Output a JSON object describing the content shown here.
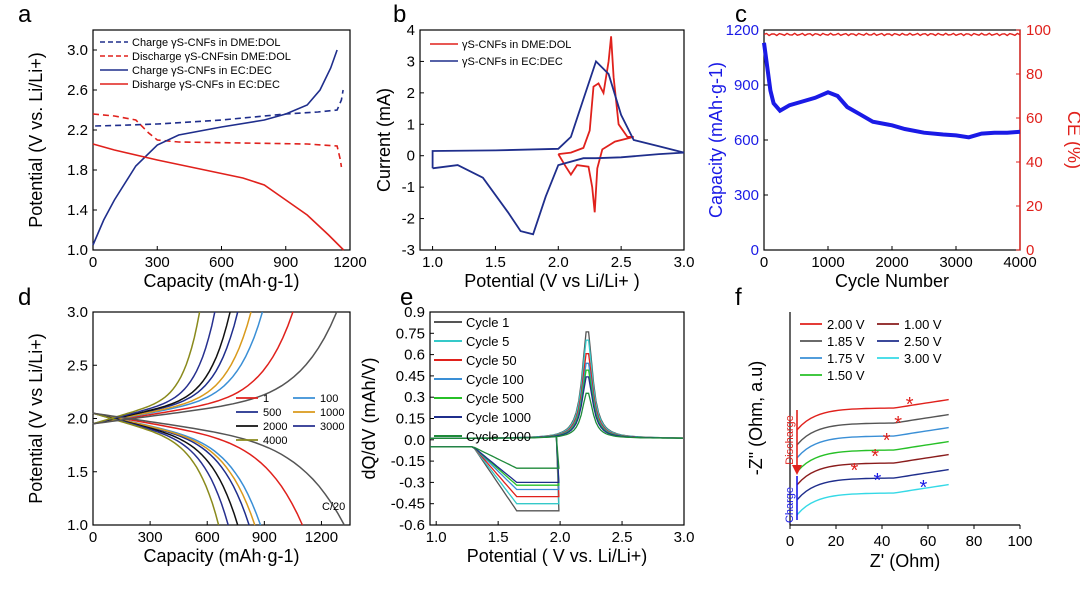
{
  "chart_data": [
    {
      "panel": "a",
      "type": "line",
      "xlabel": "Capacity (mAh·g-1)",
      "ylabel": "Potential (V vs. Li/Li+)",
      "xlim": [
        0,
        1200
      ],
      "ylim": [
        1.0,
        3.2
      ],
      "xticks": [
        "0",
        "300",
        "600",
        "900",
        "1200"
      ],
      "yticks": [
        "1.0",
        "1.4",
        "1.8",
        "2.2",
        "2.6",
        "3.0"
      ],
      "series": [
        {
          "name": "Charge γS-CNFs in DME:DOL",
          "color": "#1f2e8c",
          "dash": true,
          "points": [
            [
              10,
              2.24
            ],
            [
              100,
              2.245
            ],
            [
              300,
              2.26
            ],
            [
              600,
              2.3
            ],
            [
              900,
              2.36
            ],
            [
              1050,
              2.38
            ],
            [
              1140,
              2.4
            ],
            [
              1160,
              2.5
            ],
            [
              1168,
              2.6
            ]
          ]
        },
        {
          "name": "Discharge γS-CNFsin DME:DOL",
          "color": "#e0211c",
          "dash": true,
          "points": [
            [
              0,
              2.36
            ],
            [
              100,
              2.34
            ],
            [
              200,
              2.3
            ],
            [
              260,
              2.17
            ],
            [
              300,
              2.1
            ],
            [
              400,
              2.08
            ],
            [
              700,
              2.07
            ],
            [
              1000,
              2.06
            ],
            [
              1140,
              2.04
            ],
            [
              1155,
              1.9
            ],
            [
              1160,
              1.83
            ]
          ]
        },
        {
          "name": "Charge γS-CNFs in EC:DEC",
          "color": "#1f2e8c",
          "dash": false,
          "points": [
            [
              0,
              1.05
            ],
            [
              50,
              1.3
            ],
            [
              100,
              1.5
            ],
            [
              200,
              1.84
            ],
            [
              300,
              2.05
            ],
            [
              400,
              2.15
            ],
            [
              600,
              2.23
            ],
            [
              800,
              2.3
            ],
            [
              900,
              2.36
            ],
            [
              1000,
              2.45
            ],
            [
              1060,
              2.6
            ],
            [
              1110,
              2.82
            ],
            [
              1140,
              3.0
            ]
          ]
        },
        {
          "name": "Disharge γS-CNFs in EC:DEC",
          "color": "#e0211c",
          "dash": false,
          "points": [
            [
              0,
              2.06
            ],
            [
              100,
              2.0
            ],
            [
              300,
              1.9
            ],
            [
              500,
              1.81
            ],
            [
              700,
              1.72
            ],
            [
              800,
              1.65
            ],
            [
              900,
              1.5
            ],
            [
              1000,
              1.35
            ],
            [
              1100,
              1.15
            ],
            [
              1170,
              1.0
            ]
          ]
        }
      ]
    },
    {
      "panel": "b",
      "type": "line",
      "xlabel": "Potential (V vs Li/Li+ )",
      "ylabel": "Current (mA)",
      "xlim": [
        0.9,
        3.0
      ],
      "ylim": [
        -3,
        4
      ],
      "xticks": [
        "1.0",
        "1.5",
        "2.0",
        "2.5",
        "3.0"
      ],
      "yticks": [
        "-3",
        "-2",
        "-1",
        "0",
        "1",
        "2",
        "3",
        "4"
      ],
      "series": [
        {
          "name": "γS-CNFs in DME:DOL",
          "color": "#e0211c",
          "points": [
            [
              2.0,
              0.05
            ],
            [
              2.1,
              0.1
            ],
            [
              2.2,
              0.25
            ],
            [
              2.25,
              0.8
            ],
            [
              2.28,
              2.2
            ],
            [
              2.32,
              2.3
            ],
            [
              2.36,
              2.0
            ],
            [
              2.4,
              3.0
            ],
            [
              2.42,
              3.8
            ],
            [
              2.44,
              2.5
            ],
            [
              2.48,
              1.0
            ],
            [
              2.55,
              0.6
            ],
            [
              2.6,
              0.6
            ],
            [
              2.45,
              0.45
            ],
            [
              2.35,
              0.2
            ],
            [
              2.31,
              -0.4
            ],
            [
              2.29,
              -1.8
            ],
            [
              2.27,
              -1.0
            ],
            [
              2.24,
              -0.35
            ],
            [
              2.15,
              -0.3
            ],
            [
              2.1,
              -0.6
            ],
            [
              2.06,
              -0.35
            ],
            [
              2.0,
              0.05
            ]
          ]
        },
        {
          "name": "γS-CNFs in EC:DEC",
          "color": "#1f2e8c",
          "points": [
            [
              1.0,
              -0.4
            ],
            [
              1.0,
              0.15
            ],
            [
              1.5,
              0.17
            ],
            [
              2.0,
              0.22
            ],
            [
              2.1,
              0.6
            ],
            [
              2.2,
              1.8
            ],
            [
              2.3,
              3.0
            ],
            [
              2.4,
              2.6
            ],
            [
              2.5,
              1.3
            ],
            [
              2.6,
              0.5
            ],
            [
              2.8,
              0.3
            ],
            [
              3.0,
              0.1
            ],
            [
              2.8,
              0.05
            ],
            [
              2.5,
              -0.05
            ],
            [
              2.3,
              -0.08
            ],
            [
              2.2,
              -0.08
            ],
            [
              2.0,
              -0.3
            ],
            [
              1.9,
              -1.3
            ],
            [
              1.8,
              -2.5
            ],
            [
              1.7,
              -2.4
            ],
            [
              1.6,
              -1.8
            ],
            [
              1.4,
              -0.7
            ],
            [
              1.2,
              -0.3
            ],
            [
              1.0,
              -0.4
            ]
          ]
        }
      ]
    },
    {
      "panel": "c",
      "type": "line",
      "xlabel": "Cycle Number",
      "ylabel": "Capacity (mAh·g-1)",
      "y2label": "CE (%)",
      "xlim": [
        0,
        4000
      ],
      "ylim": [
        0,
        1200
      ],
      "y2lim": [
        0,
        100
      ],
      "xticks": [
        "0",
        "1000",
        "2000",
        "3000",
        "4000"
      ],
      "yticks": [
        "0",
        "300",
        "600",
        "900",
        "1200"
      ],
      "y2ticks": [
        "0",
        "20",
        "40",
        "60",
        "80",
        "100"
      ],
      "series": [
        {
          "name": "Capacity",
          "axis": "left",
          "color": "#1a1ae6",
          "points": [
            [
              0,
              1130
            ],
            [
              50,
              1000
            ],
            [
              100,
              870
            ],
            [
              150,
              800
            ],
            [
              250,
              760
            ],
            [
              400,
              790
            ],
            [
              600,
              810
            ],
            [
              800,
              830
            ],
            [
              1000,
              860
            ],
            [
              1150,
              840
            ],
            [
              1300,
              780
            ],
            [
              1500,
              740
            ],
            [
              1700,
              700
            ],
            [
              2000,
              680
            ],
            [
              2200,
              660
            ],
            [
              2500,
              640
            ],
            [
              2800,
              630
            ],
            [
              3000,
              625
            ],
            [
              3200,
              615
            ],
            [
              3400,
              635
            ],
            [
              3600,
              640
            ],
            [
              3800,
              640
            ],
            [
              4000,
              645
            ]
          ]
        },
        {
          "name": "CE",
          "axis": "right",
          "color": "#e0211c",
          "points": [
            [
              0,
              98
            ],
            [
              500,
              98
            ],
            [
              1000,
              98
            ],
            [
              1500,
              98
            ],
            [
              2000,
              98
            ],
            [
              2500,
              98
            ],
            [
              3000,
              98
            ],
            [
              3500,
              98
            ],
            [
              4000,
              98
            ]
          ]
        }
      ]
    },
    {
      "panel": "d",
      "type": "line",
      "xlabel": "Capacity (mAh·g-1)",
      "ylabel": "Potential (V vs Li/Li+)",
      "xlim": [
        0,
        1350
      ],
      "ylim": [
        1.0,
        3.0
      ],
      "xticks": [
        "0",
        "300",
        "600",
        "900",
        "1200"
      ],
      "yticks": [
        "1.0",
        "1.5",
        "2.0",
        "2.5",
        "3.0"
      ],
      "annotation": "C/20",
      "series": [
        {
          "name": "1",
          "color": "#e0211c",
          "cap": 1100,
          "chg": 1050
        },
        {
          "name": "100",
          "color": "#3a8fd6",
          "cap": 880,
          "chg": 890
        },
        {
          "name": "500",
          "color": "#1f2e8c",
          "cap": 820,
          "chg": 760
        },
        {
          "name": "1000",
          "color": "#d99a1c",
          "cap": 850,
          "chg": 830
        },
        {
          "name": "2000",
          "color": "#111111",
          "cap": 760,
          "chg": 720
        },
        {
          "name": "3000",
          "color": "#27308f",
          "cap": 710,
          "chg": 640
        },
        {
          "name": "4000",
          "color": "#8a8a1c",
          "cap": 660,
          "chg": 560
        },
        {
          "name": "C/20",
          "color": "#555555",
          "cap": 1320,
          "chg": 1280
        }
      ]
    },
    {
      "panel": "e",
      "type": "line",
      "xlabel": "Potential ( V vs. Li/Li+)",
      "ylabel": "dQ/dV (mAh/V)",
      "xlim": [
        0.95,
        3.0
      ],
      "ylim": [
        -0.6,
        0.9
      ],
      "xticks": [
        "1.0",
        "1.5",
        "2.0",
        "2.5",
        "3.0"
      ],
      "yticks": [
        "-0.6",
        "-0.45",
        "-0.3",
        "-0.15",
        "0.0",
        "0.15",
        "0.3",
        "0.45",
        "0.6",
        "0.75",
        "0.9"
      ],
      "series": [
        {
          "name": "Cycle 1",
          "color": "#555555",
          "peak": 0.78,
          "trough": -0.5
        },
        {
          "name": "Cycle 5",
          "color": "#35c9c9",
          "peak": 0.72,
          "trough": -0.45
        },
        {
          "name": "Cycle 50",
          "color": "#e0211c",
          "peak": 0.62,
          "trough": -0.4
        },
        {
          "name": "Cycle 100",
          "color": "#3a8fd6",
          "peak": 0.55,
          "trough": -0.35
        },
        {
          "name": "Cycle 500",
          "color": "#27c027",
          "peak": 0.5,
          "trough": -0.32
        },
        {
          "name": "Cycle 1000",
          "color": "#1f2e8c",
          "peak": 0.45,
          "trough": -0.3
        },
        {
          "name": "Cycle 2000",
          "color": "#1e8a3a",
          "peak": 0.33,
          "trough": -0.2
        }
      ]
    },
    {
      "panel": "f",
      "type": "line",
      "xlabel": "Z' (Ohm)",
      "ylabel": "-Z\" (Ohm, a.u)",
      "xlim": [
        0,
        100
      ],
      "xticks": [
        "0",
        "20",
        "40",
        "60",
        "80",
        "100"
      ],
      "arrow_discharge": "Discharge",
      "arrow_charge": "Charge",
      "series": [
        {
          "name": "2.00 V",
          "color": "#e0211c"
        },
        {
          "name": "1.85 V",
          "color": "#555555"
        },
        {
          "name": "1.75 V",
          "color": "#3a8fd6"
        },
        {
          "name": "1.50 V",
          "color": "#27c027"
        },
        {
          "name": "1.00 V",
          "color": "#8a1c1c"
        },
        {
          "name": "2.50 V",
          "color": "#1f2e8c"
        },
        {
          "name": "3.00 V",
          "color": "#35d9e6"
        }
      ]
    }
  ],
  "panel_labels": [
    "a",
    "b",
    "c",
    "d",
    "e",
    "f"
  ]
}
